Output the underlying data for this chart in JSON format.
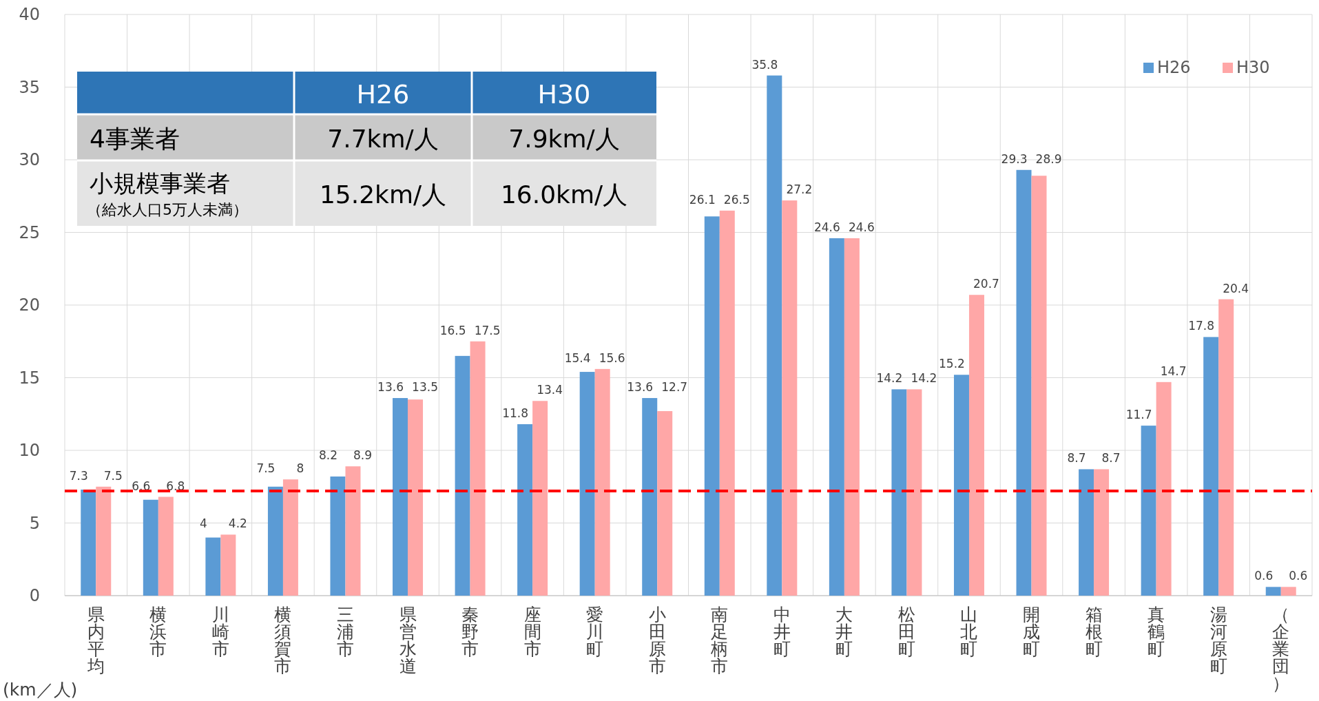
{
  "chart_data": {
    "type": "bar",
    "categories": [
      "県内平均",
      "横浜市",
      "川崎市",
      "横須賀市",
      "三浦市",
      "県営水道",
      "秦野市",
      "座間市",
      "愛川町",
      "小田原市",
      "南足柄市",
      "中井町",
      "大井町",
      "松田町",
      "山北町",
      "開成町",
      "箱根町",
      "真鶴町",
      "湯河原町",
      "（企業団）"
    ],
    "series": [
      {
        "name": "H26",
        "color": "#5b9bd5",
        "values": [
          7.3,
          6.6,
          4,
          7.5,
          8.2,
          13.6,
          16.5,
          11.8,
          15.4,
          13.6,
          26.1,
          35.8,
          24.6,
          14.2,
          15.2,
          29.3,
          8.7,
          11.7,
          17.8,
          0.6
        ]
      },
      {
        "name": "H30",
        "color": "#ffa7a7",
        "values": [
          7.5,
          6.8,
          4.2,
          8,
          8.9,
          13.5,
          17.5,
          13.4,
          15.6,
          12.7,
          26.5,
          27.2,
          24.6,
          14.2,
          20.7,
          28.9,
          8.7,
          14.7,
          20.4,
          0.6
        ]
      }
    ],
    "ylabel": "(km／人)",
    "ylim": [
      0,
      40
    ],
    "yticks": [
      0,
      5,
      10,
      15,
      20,
      25,
      30,
      35,
      40
    ],
    "grid": true,
    "legend": "top right",
    "data_labels": true,
    "ref_lines": [
      {
        "axis": "y",
        "value": 7.2,
        "color": "#ff0000",
        "line_style": "dashed"
      }
    ],
    "annotations": [
      "H26",
      "H30",
      "4事業者",
      "7.7km/人",
      "7.9km/人",
      "小規模事業者",
      "（給水人口5万人未満）",
      "15.2km/人",
      "16.0km/人"
    ]
  }
}
